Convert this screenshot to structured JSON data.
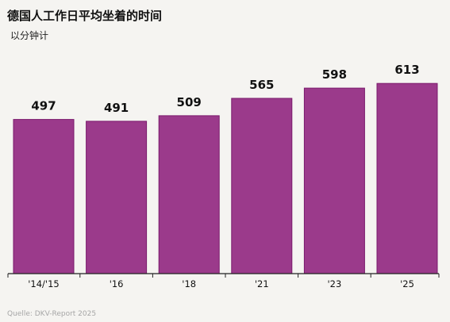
{
  "chart_data": {
    "type": "bar",
    "title": "德国人工作日平均坐着的时间",
    "subtitle": "以分钟计",
    "categories": [
      "'14/'15",
      "'16",
      "'18",
      "'21",
      "'23",
      "'25"
    ],
    "values": [
      497,
      491,
      509,
      565,
      598,
      613
    ],
    "ylim": [
      0,
      700
    ],
    "grid": false,
    "legend": "none",
    "bar_color": "#9b3a8b",
    "bar_edge_color": "#7a1a6c",
    "axis_color": "#222222",
    "source": "Quelle: DKV-Report 2025"
  }
}
